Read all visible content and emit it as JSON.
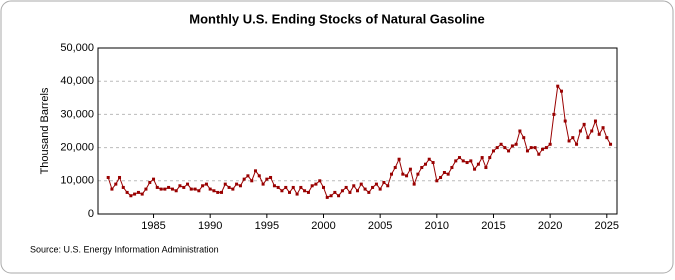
{
  "chart_data": {
    "type": "line",
    "title": "Monthly U.S. Ending Stocks of Natural Gasoline",
    "y_label": "Thousand Barrels",
    "source": "Source: U.S. Energy Information Administration",
    "x": [
      1981,
      1981.33,
      1981.67,
      1982,
      1982.33,
      1982.67,
      1983,
      1983.33,
      1983.67,
      1984,
      1984.33,
      1984.67,
      1985,
      1985.33,
      1985.67,
      1986,
      1986.33,
      1986.67,
      1987,
      1987.33,
      1987.67,
      1988,
      1988.33,
      1988.67,
      1989,
      1989.33,
      1989.67,
      1990,
      1990.33,
      1990.67,
      1991,
      1991.33,
      1991.67,
      1992,
      1992.33,
      1992.67,
      1993,
      1993.33,
      1993.67,
      1994,
      1994.33,
      1994.67,
      1995,
      1995.33,
      1995.67,
      1996,
      1996.33,
      1996.67,
      1997,
      1997.33,
      1997.67,
      1998,
      1998.33,
      1998.67,
      1999,
      1999.33,
      1999.67,
      2000,
      2000.33,
      2000.67,
      2001,
      2001.33,
      2001.67,
      2002,
      2002.33,
      2002.67,
      2003,
      2003.33,
      2003.67,
      2004,
      2004.33,
      2004.67,
      2005,
      2005.33,
      2005.67,
      2006,
      2006.33,
      2006.67,
      2007,
      2007.33,
      2007.67,
      2008,
      2008.33,
      2008.67,
      2009,
      2009.33,
      2009.67,
      2010,
      2010.33,
      2010.67,
      2011,
      2011.33,
      2011.67,
      2012,
      2012.33,
      2012.67,
      2013,
      2013.33,
      2013.67,
      2014,
      2014.33,
      2014.67,
      2015,
      2015.33,
      2015.67,
      2016,
      2016.33,
      2016.67,
      2017,
      2017.33,
      2017.67,
      2018,
      2018.33,
      2018.67,
      2019,
      2019.33,
      2019.67,
      2020,
      2020.33,
      2020.67,
      2021,
      2021.33,
      2021.67,
      2022,
      2022.33,
      2022.67,
      2023,
      2023.33,
      2023.67,
      2024,
      2024.33,
      2024.67,
      2025,
      2025.33
    ],
    "series": [
      {
        "name": "Ending Stocks",
        "color": "#990000",
        "values": [
          11000,
          7500,
          9000,
          11000,
          8000,
          6500,
          5500,
          6000,
          6500,
          6000,
          7500,
          9500,
          10500,
          8000,
          7500,
          7500,
          8000,
          7500,
          7000,
          8500,
          8000,
          9000,
          7500,
          7500,
          7000,
          8500,
          9000,
          7500,
          7000,
          6500,
          6500,
          9000,
          8000,
          7500,
          9000,
          8500,
          10500,
          11500,
          10000,
          13000,
          11500,
          9000,
          10500,
          11000,
          8500,
          8000,
          7000,
          8000,
          6500,
          8000,
          6000,
          8000,
          7000,
          6500,
          8500,
          9000,
          10000,
          8000,
          5000,
          5500,
          6500,
          5500,
          7000,
          8000,
          6500,
          8500,
          7000,
          9000,
          7500,
          6500,
          8000,
          9000,
          7500,
          9500,
          8500,
          12000,
          14000,
          16500,
          12000,
          11500,
          13500,
          9000,
          12000,
          14000,
          15000,
          16500,
          15500,
          10000,
          11000,
          12500,
          12000,
          14000,
          16000,
          17000,
          16000,
          15500,
          16000,
          13500,
          15000,
          17000,
          14000,
          17000,
          19000,
          20000,
          21000,
          20000,
          19000,
          20500,
          21000,
          25000,
          23000,
          19000,
          20000,
          20000,
          18000,
          19500,
          20000,
          21000,
          30000,
          38500,
          37000,
          28000,
          22000,
          23000,
          21000,
          25000,
          27000,
          23000,
          25000,
          28000,
          24000,
          26000,
          23000,
          21000
        ]
      }
    ],
    "xlim": [
      1980.1,
      2025.9
    ],
    "xticks": [
      1985,
      1990,
      1995,
      2000,
      2005,
      2010,
      2015,
      2020,
      2025
    ],
    "ylim": [
      0,
      50000
    ],
    "yticks": [
      0,
      {
        "value": 10000,
        "label": "10,000"
      },
      {
        "value": 20000,
        "label": "20,000"
      },
      {
        "value": 30000,
        "label": "30,000"
      },
      {
        "value": 40000,
        "label": "40,000"
      },
      {
        "value": 50000,
        "label": "50,000"
      }
    ],
    "grid": true
  }
}
